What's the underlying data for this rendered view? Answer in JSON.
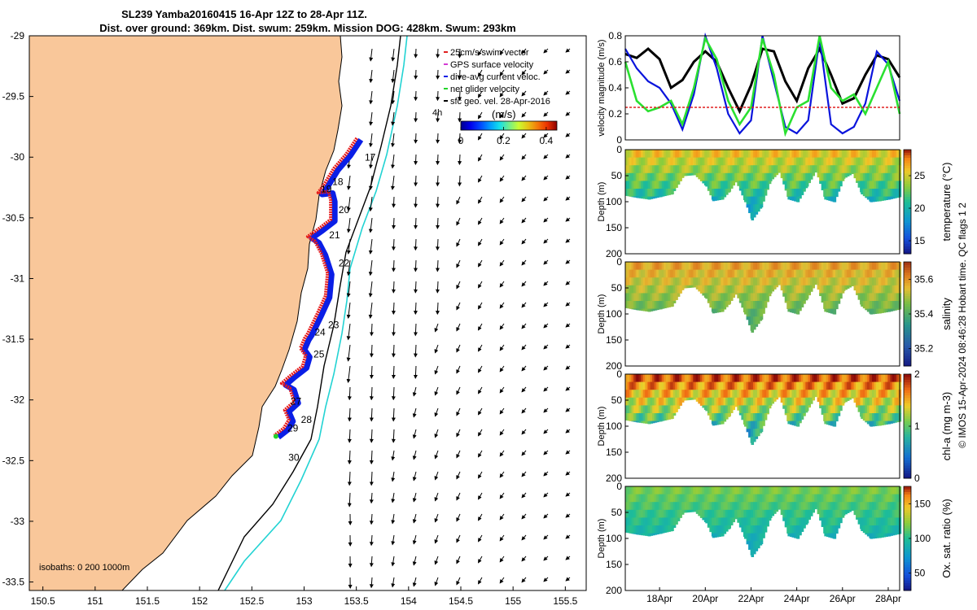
{
  "title": {
    "line1": "SL239 Yamba20160415 16-Apr 12Z to 28-Apr 11Z.",
    "line2": "Dist. over ground: 369km. Dist. swum: 259km. Mission DOG: 428km. Swum: 293km"
  },
  "credit": "© IMOS 15-Apr-2024 08:46:28 Hobart time. QC flags 1  2",
  "colors": {
    "land": "#f9c79a",
    "track_red": "#e61c1c",
    "track_blue": "#0a1ee6",
    "track_green": "#22d42a",
    "isobath_200": "#000000",
    "isobath_1000": "#22d3d3",
    "velocity_black": "#000000",
    "velocity_blue": "#0a14dc",
    "velocity_green": "#2ae030",
    "velocity_red": "#e02020"
  },
  "chart_data": [
    {
      "type": "scatter",
      "name": "map",
      "x_ticks": [
        "150.5",
        "151",
        "151.5",
        "152",
        "152.5",
        "153",
        "153.5",
        "154",
        "154.5",
        "155",
        "155.5"
      ],
      "y_ticks": [
        "-29",
        "-29.5",
        "-30",
        "-30.5",
        "-31",
        "-31.5",
        "-32",
        "-32.5",
        "-33",
        "-33.5"
      ],
      "xlim": [
        150.37,
        155.7
      ],
      "ylim": [
        -33.57,
        -29.0
      ],
      "legend": {
        "placement": "top-right",
        "entries": [
          "25cm/s swim vector",
          "GPS surface velocity",
          "dive-avg current veloc.",
          "net glider velocity",
          "sfc geo. vel. 28-Apr-2016"
        ],
        "extra": "4h"
      },
      "colorbar": {
        "label": "(m/s)",
        "ticks": [
          "0",
          "0.2",
          "0.4"
        ],
        "range": [
          0,
          0.45
        ]
      },
      "isobath_label": "isobaths: 0   200  1000m",
      "day_labels": [
        {
          "text": "17",
          "lon": 153.58,
          "lat": -30.03
        },
        {
          "text": "18",
          "lon": 153.27,
          "lat": -30.23
        },
        {
          "text": "19",
          "lon": 153.16,
          "lat": -30.29
        },
        {
          "text": "20",
          "lon": 153.33,
          "lat": -30.46
        },
        {
          "text": "21",
          "lon": 153.24,
          "lat": -30.67
        },
        {
          "text": "22",
          "lon": 153.33,
          "lat": -30.9
        },
        {
          "text": "23",
          "lon": 153.23,
          "lat": -31.41
        },
        {
          "text": "24",
          "lon": 153.1,
          "lat": -31.47
        },
        {
          "text": "25",
          "lon": 153.09,
          "lat": -31.65
        },
        {
          "text": "27",
          "lon": 152.87,
          "lat": -32.04
        },
        {
          "text": "28",
          "lon": 152.97,
          "lat": -32.19
        },
        {
          "text": "29",
          "lon": 152.84,
          "lat": -32.26
        },
        {
          "text": "30",
          "lon": 152.85,
          "lat": -32.5
        }
      ],
      "track": [
        [
          153.52,
          -29.85
        ],
        [
          153.42,
          -29.98
        ],
        [
          153.3,
          -30.1
        ],
        [
          153.2,
          -30.24
        ],
        [
          153.15,
          -30.3
        ],
        [
          153.25,
          -30.29
        ],
        [
          153.27,
          -30.36
        ],
        [
          153.27,
          -30.52
        ],
        [
          153.15,
          -30.6
        ],
        [
          153.05,
          -30.66
        ],
        [
          153.12,
          -30.7
        ],
        [
          153.18,
          -30.8
        ],
        [
          153.24,
          -30.96
        ],
        [
          153.22,
          -31.15
        ],
        [
          153.14,
          -31.3
        ],
        [
          153.05,
          -31.46
        ],
        [
          153.02,
          -31.5
        ],
        [
          152.98,
          -31.58
        ],
        [
          153.03,
          -31.64
        ],
        [
          153.0,
          -31.73
        ],
        [
          152.88,
          -31.81
        ],
        [
          152.8,
          -31.87
        ],
        [
          152.88,
          -31.91
        ],
        [
          152.92,
          -32.02
        ],
        [
          152.83,
          -32.09
        ],
        [
          152.87,
          -32.17
        ],
        [
          152.82,
          -32.24
        ],
        [
          152.73,
          -32.3
        ]
      ]
    },
    {
      "type": "line",
      "name": "velocity-magnitude",
      "ylabel": "velocity magnitude (m/s)",
      "y_ticks": [
        "0",
        "0.2",
        "0.4",
        "0.6",
        "0.8"
      ],
      "ylim": [
        0,
        0.8
      ],
      "xlim": [
        16.5,
        28.5
      ],
      "series": [
        {
          "color": "black",
          "x": [
            16.5,
            17.0,
            17.5,
            18.0,
            18.5,
            19.0,
            19.5,
            20.0,
            20.5,
            21.0,
            21.5,
            22.0,
            22.5,
            23.0,
            23.5,
            24.0,
            24.5,
            25.0,
            25.5,
            26.0,
            26.5,
            27.0,
            27.5,
            28.0,
            28.5
          ],
          "values": [
            0.66,
            0.63,
            0.7,
            0.62,
            0.4,
            0.46,
            0.6,
            0.68,
            0.6,
            0.4,
            0.22,
            0.42,
            0.7,
            0.68,
            0.45,
            0.3,
            0.55,
            0.7,
            0.5,
            0.28,
            0.32,
            0.5,
            0.65,
            0.62,
            0.48
          ]
        },
        {
          "color": "blue",
          "x": [
            16.5,
            17.0,
            17.5,
            18.0,
            18.5,
            19.0,
            19.5,
            20.0,
            20.5,
            21.0,
            21.5,
            22.0,
            22.5,
            23.0,
            23.5,
            24.0,
            24.5,
            25.0,
            25.5,
            26.0,
            26.5,
            27.0,
            27.5,
            28.0,
            28.5
          ],
          "values": [
            0.7,
            0.55,
            0.45,
            0.4,
            0.28,
            0.08,
            0.35,
            0.8,
            0.55,
            0.2,
            0.05,
            0.15,
            0.8,
            0.45,
            0.1,
            0.05,
            0.15,
            0.78,
            0.12,
            0.05,
            0.1,
            0.28,
            0.68,
            0.58,
            0.3
          ]
        },
        {
          "color": "green",
          "x": [
            16.5,
            17.0,
            17.5,
            18.0,
            18.5,
            19.0,
            19.5,
            20.0,
            20.5,
            21.0,
            21.5,
            22.0,
            22.5,
            23.0,
            23.5,
            24.0,
            24.5,
            25.0,
            25.5,
            26.0,
            26.5,
            27.0,
            27.5,
            28.0,
            28.5
          ],
          "values": [
            0.6,
            0.3,
            0.22,
            0.25,
            0.3,
            0.12,
            0.4,
            0.78,
            0.62,
            0.3,
            0.12,
            0.25,
            0.78,
            0.5,
            0.05,
            0.25,
            0.3,
            0.8,
            0.4,
            0.3,
            0.35,
            0.2,
            0.4,
            0.6,
            0.2
          ]
        },
        {
          "color": "red",
          "x": [
            16.5,
            28.5
          ],
          "values": [
            0.25,
            0.25
          ]
        }
      ]
    },
    {
      "type": "heatmap",
      "name": "temperature",
      "ylabel": "Depth (m)",
      "cblabel": "temperature (°C)",
      "y_ticks": [
        "0",
        "50",
        "100",
        "150",
        "200"
      ],
      "ylim": [
        200,
        0
      ],
      "cb_ticks": [
        "15",
        "20",
        "25"
      ],
      "clim": [
        13,
        29
      ],
      "fill_min": 23,
      "fill_max": 27,
      "fill_deep": 19,
      "palette": "parula"
    },
    {
      "type": "heatmap",
      "name": "salinity",
      "ylabel": "Depth (m)",
      "cblabel": "salinity",
      "y_ticks": [
        "0",
        "50",
        "100",
        "150",
        "200"
      ],
      "ylim": [
        200,
        0
      ],
      "cb_ticks": [
        "35.2",
        "35.4",
        "35.6"
      ],
      "clim": [
        35.1,
        35.7
      ],
      "fill_min": 35.5,
      "fill_max": 35.62,
      "fill_deep": 35.4,
      "palette": "haline"
    },
    {
      "type": "heatmap",
      "name": "chlorophyll",
      "ylabel": "Depth (m)",
      "cblabel": "chl-a (mg m-3)",
      "y_ticks": [
        "0",
        "50",
        "100",
        "150",
        "200"
      ],
      "ylim": [
        200,
        0
      ],
      "cb_ticks": [
        "0",
        "1",
        "2"
      ],
      "clim": [
        0,
        2
      ],
      "fill_min": 1.3,
      "fill_max": 2.0,
      "fill_deep": 0.7,
      "palette": "algae"
    },
    {
      "type": "heatmap",
      "name": "oxygen",
      "ylabel": "Depth (m)",
      "cblabel": "Ox. sat. ratio (%)",
      "y_ticks": [
        "0",
        "50",
        "100",
        "150",
        "200"
      ],
      "ylim": [
        200,
        0
      ],
      "cb_ticks": [
        "50",
        "100",
        "150"
      ],
      "clim": [
        25,
        175
      ],
      "fill_min": 105,
      "fill_max": 125,
      "fill_deep": 85,
      "palette": "parula",
      "x_ticks": [
        "18Apr",
        "20Apr",
        "22Apr",
        "24Apr",
        "26Apr",
        "28Apr"
      ],
      "x_tick_values": [
        18,
        20,
        22,
        24,
        26,
        28
      ]
    }
  ]
}
